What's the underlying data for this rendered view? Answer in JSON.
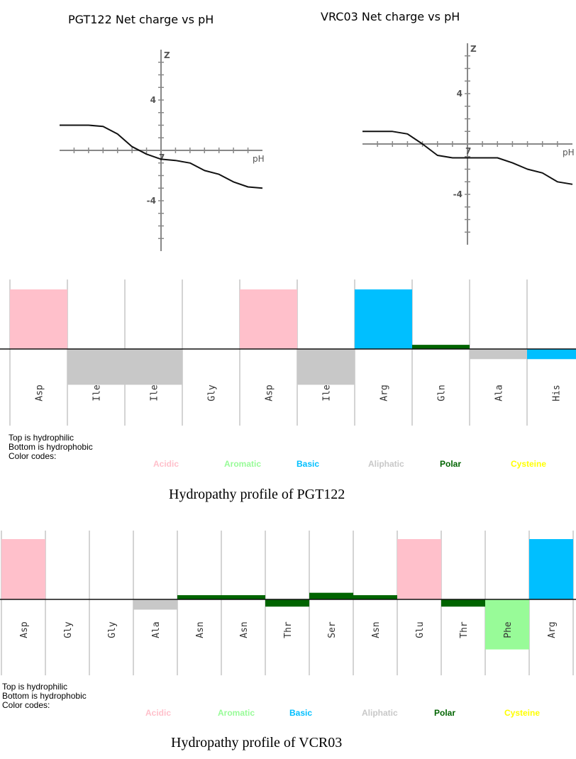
{
  "chart_data": [
    {
      "type": "line",
      "title": "PGT122 Net charge vs pH",
      "xlabel": "pH",
      "ylabel": "Z",
      "xlim": [
        0,
        14
      ],
      "ylim": [
        -8,
        8
      ],
      "x_tick_labels": [
        "7"
      ],
      "y_tick_labels": [
        "4",
        "-4"
      ],
      "x": [
        0,
        1,
        2,
        3,
        4,
        5,
        6,
        7,
        8,
        9,
        10,
        11,
        12,
        13,
        14
      ],
      "y": [
        2.0,
        2.0,
        2.0,
        1.9,
        1.3,
        0.3,
        -0.3,
        -0.7,
        -0.8,
        -1.0,
        -1.6,
        -1.9,
        -2.5,
        -2.9,
        -3.0
      ]
    },
    {
      "type": "line",
      "title": "VRC03 Net charge vs pH",
      "xlabel": "pH",
      "ylabel": "Z",
      "xlim": [
        0,
        14
      ],
      "ylim": [
        -8,
        8
      ],
      "x_tick_labels": [
        "7"
      ],
      "y_tick_labels": [
        "4",
        "-4"
      ],
      "x": [
        0,
        1,
        2,
        3,
        4,
        5,
        6,
        7,
        8,
        9,
        10,
        11,
        12,
        13,
        14
      ],
      "y": [
        1.0,
        1.0,
        1.0,
        0.8,
        0.0,
        -0.9,
        -1.1,
        -1.1,
        -1.1,
        -1.1,
        -1.5,
        -2.0,
        -2.3,
        -3.0,
        -3.2
      ]
    },
    {
      "type": "bar",
      "title": "Hydropathy profile of PGT122",
      "categories": [
        "Asp",
        "Ile",
        "Ile",
        "Gly",
        "Asp",
        "Ile",
        "Arg",
        "Gln",
        "Ala",
        "His"
      ],
      "values": [
        1.0,
        -0.6,
        -0.6,
        0.0,
        1.0,
        -0.6,
        1.0,
        0.07,
        -0.17,
        -0.17
      ],
      "classes": [
        "Acidic",
        "Aliphatic",
        "Aliphatic",
        "None",
        "Acidic",
        "Aliphatic",
        "Basic",
        "Polar",
        "Aliphatic",
        "Basic"
      ]
    },
    {
      "type": "bar",
      "title": "Hydropathy profile of VCR03",
      "categories": [
        "Asp",
        "Gly",
        "Gly",
        "Ala",
        "Asn",
        "Asn",
        "Thr",
        "Ser",
        "Asn",
        "Glu",
        "Thr",
        "Phe",
        "Arg"
      ],
      "values": [
        1.0,
        0.0,
        0.0,
        -0.17,
        0.07,
        0.07,
        -0.12,
        0.11,
        0.07,
        1.0,
        -0.12,
        -0.83,
        1.0
      ],
      "classes": [
        "Acidic",
        "None",
        "None",
        "Aliphatic",
        "Polar",
        "Polar",
        "Polar",
        "Polar",
        "Polar",
        "Acidic",
        "Polar",
        "Aromatic",
        "Basic"
      ]
    }
  ],
  "profile_notes": {
    "top": "Top is hydrophilic",
    "bottom": "Bottom is hydrophobic",
    "color_codes": "Color codes:"
  },
  "legend": [
    {
      "name": "Acidic",
      "color": "#ffc0cb"
    },
    {
      "name": "Aromatic",
      "color": "#98fb98"
    },
    {
      "name": "Basic",
      "color": "#00bfff"
    },
    {
      "name": "Aliphatic",
      "color": "#c8c8c8"
    },
    {
      "name": "Polar",
      "color": "#006400"
    },
    {
      "name": "Cysteine",
      "color": "#ffff00"
    }
  ]
}
